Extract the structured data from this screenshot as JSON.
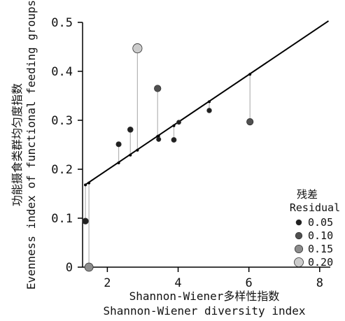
{
  "chart_data": {
    "type": "scatter",
    "xlabel_cn": "Shannon-Wiener多样性指数",
    "xlabel_en": "Shannon-Wiener diversity index",
    "ylabel_cn": "功能摄食类群均匀度指数",
    "ylabel_en": "Evenness index of functional feeding groups",
    "xlim": [
      1.3,
      8.3
    ],
    "ylim": [
      0,
      0.5
    ],
    "xticks": [
      2,
      4,
      6,
      8
    ],
    "yticks": [
      0,
      0.1,
      0.2,
      0.3,
      0.4,
      0.5
    ],
    "xtick_labels": [
      "2",
      "4",
      "6",
      "8"
    ],
    "ytick_labels": [
      "0",
      "0.1",
      "0.2",
      "0.3",
      "0.4",
      "0.5"
    ],
    "fit_line": {
      "x": [
        1.35,
        8.25
      ],
      "y": [
        0.167,
        0.503
      ]
    },
    "points": [
      {
        "x": 1.38,
        "y": 0.094,
        "fitted": 0.168,
        "residual": 0.074
      },
      {
        "x": 1.48,
        "y": 0.0,
        "fitted": 0.172,
        "residual": 0.172
      },
      {
        "x": 2.32,
        "y": 0.251,
        "fitted": 0.213,
        "residual": 0.038
      },
      {
        "x": 2.65,
        "y": 0.281,
        "fitted": 0.229,
        "residual": 0.052
      },
      {
        "x": 2.85,
        "y": 0.447,
        "fitted": 0.239,
        "residual": 0.208
      },
      {
        "x": 3.42,
        "y": 0.365,
        "fitted": 0.267,
        "residual": 0.098
      },
      {
        "x": 3.45,
        "y": 0.261,
        "fitted": 0.268,
        "residual": 0.007
      },
      {
        "x": 3.88,
        "y": 0.26,
        "fitted": 0.289,
        "residual": 0.029
      },
      {
        "x": 4.02,
        "y": 0.296,
        "fitted": 0.296,
        "residual": 0.0
      },
      {
        "x": 4.88,
        "y": 0.32,
        "fitted": 0.338,
        "residual": 0.018
      },
      {
        "x": 6.03,
        "y": 0.297,
        "fitted": 0.394,
        "residual": 0.097
      }
    ],
    "legend": {
      "title_cn": "残差",
      "title_en": "Residual",
      "placement": "bottom-right",
      "entries": [
        {
          "label": "0.05",
          "value": 0.05,
          "color": "#202020"
        },
        {
          "label": "0.10",
          "value": 0.1,
          "color": "#505050"
        },
        {
          "label": "0.15",
          "value": 0.15,
          "color": "#8c8c8c"
        },
        {
          "label": "0.20",
          "value": 0.2,
          "color": "#cccccc"
        }
      ]
    },
    "colors": {
      "line": "#000000",
      "connector": "#b4b4b4",
      "axis": "#000000"
    }
  }
}
